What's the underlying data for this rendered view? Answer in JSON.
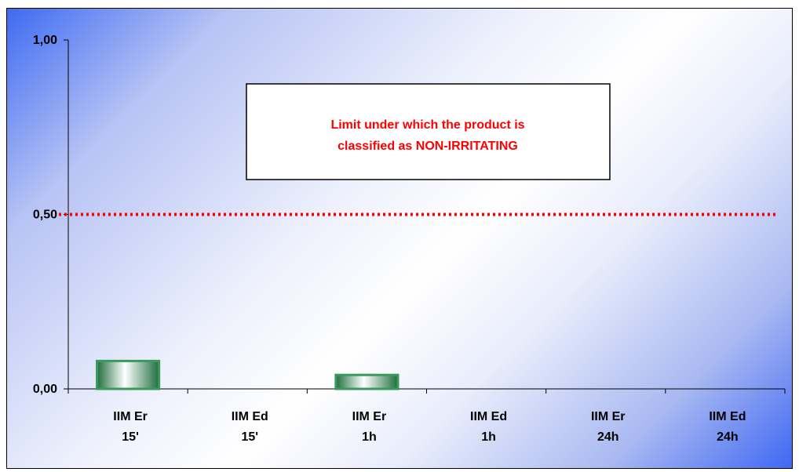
{
  "chart_data": {
    "type": "bar",
    "categories": [
      [
        "IIM Er",
        "15'"
      ],
      [
        "IIM Ed",
        "15'"
      ],
      [
        "IIM Er",
        "1h"
      ],
      [
        "IIM Ed",
        "1h"
      ],
      [
        "IIM Er",
        "24h"
      ],
      [
        "IIM Ed",
        "24h"
      ]
    ],
    "values": [
      0.08,
      0,
      0.04,
      0,
      0,
      0
    ],
    "ylim": [
      0,
      1
    ],
    "yticks": [
      {
        "value": 0,
        "label": "0,00"
      },
      {
        "value": 0.5,
        "label": "0,50"
      },
      {
        "value": 1,
        "label": "1,00"
      }
    ],
    "grid": false,
    "threshold": {
      "value": 0.5,
      "style": "dotted",
      "color": "#ff0000"
    },
    "annotation": {
      "lines": [
        "Limit under which the product is",
        "classified as NON-IRRITATING"
      ],
      "color": "#ff0000"
    },
    "bar_color": "#3a9a5e",
    "background_colors": [
      "#3f6bf2",
      "#ffffff",
      "#3f68f3"
    ]
  }
}
